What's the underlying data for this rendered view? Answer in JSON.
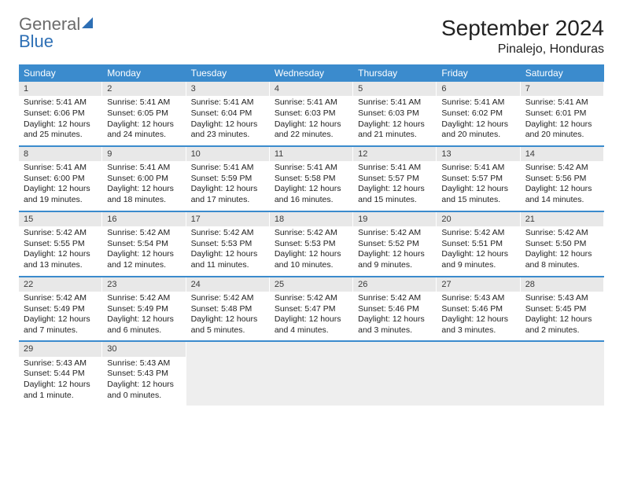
{
  "logo": {
    "gray": "General",
    "blue": "Blue"
  },
  "title": "September 2024",
  "location": "Pinalejo, Honduras",
  "colors": {
    "header_bg": "#3b8bcd",
    "header_text": "#ffffff",
    "daynum_bg": "#e8e8e8",
    "row_border": "#3b8bcd",
    "empty_bg": "#eeeeee"
  },
  "day_headers": [
    "Sunday",
    "Monday",
    "Tuesday",
    "Wednesday",
    "Thursday",
    "Friday",
    "Saturday"
  ],
  "weeks": [
    [
      {
        "n": "1",
        "sunrise": "Sunrise: 5:41 AM",
        "sunset": "Sunset: 6:06 PM",
        "d1": "Daylight: 12 hours",
        "d2": "and 25 minutes."
      },
      {
        "n": "2",
        "sunrise": "Sunrise: 5:41 AM",
        "sunset": "Sunset: 6:05 PM",
        "d1": "Daylight: 12 hours",
        "d2": "and 24 minutes."
      },
      {
        "n": "3",
        "sunrise": "Sunrise: 5:41 AM",
        "sunset": "Sunset: 6:04 PM",
        "d1": "Daylight: 12 hours",
        "d2": "and 23 minutes."
      },
      {
        "n": "4",
        "sunrise": "Sunrise: 5:41 AM",
        "sunset": "Sunset: 6:03 PM",
        "d1": "Daylight: 12 hours",
        "d2": "and 22 minutes."
      },
      {
        "n": "5",
        "sunrise": "Sunrise: 5:41 AM",
        "sunset": "Sunset: 6:03 PM",
        "d1": "Daylight: 12 hours",
        "d2": "and 21 minutes."
      },
      {
        "n": "6",
        "sunrise": "Sunrise: 5:41 AM",
        "sunset": "Sunset: 6:02 PM",
        "d1": "Daylight: 12 hours",
        "d2": "and 20 minutes."
      },
      {
        "n": "7",
        "sunrise": "Sunrise: 5:41 AM",
        "sunset": "Sunset: 6:01 PM",
        "d1": "Daylight: 12 hours",
        "d2": "and 20 minutes."
      }
    ],
    [
      {
        "n": "8",
        "sunrise": "Sunrise: 5:41 AM",
        "sunset": "Sunset: 6:00 PM",
        "d1": "Daylight: 12 hours",
        "d2": "and 19 minutes."
      },
      {
        "n": "9",
        "sunrise": "Sunrise: 5:41 AM",
        "sunset": "Sunset: 6:00 PM",
        "d1": "Daylight: 12 hours",
        "d2": "and 18 minutes."
      },
      {
        "n": "10",
        "sunrise": "Sunrise: 5:41 AM",
        "sunset": "Sunset: 5:59 PM",
        "d1": "Daylight: 12 hours",
        "d2": "and 17 minutes."
      },
      {
        "n": "11",
        "sunrise": "Sunrise: 5:41 AM",
        "sunset": "Sunset: 5:58 PM",
        "d1": "Daylight: 12 hours",
        "d2": "and 16 minutes."
      },
      {
        "n": "12",
        "sunrise": "Sunrise: 5:41 AM",
        "sunset": "Sunset: 5:57 PM",
        "d1": "Daylight: 12 hours",
        "d2": "and 15 minutes."
      },
      {
        "n": "13",
        "sunrise": "Sunrise: 5:41 AM",
        "sunset": "Sunset: 5:57 PM",
        "d1": "Daylight: 12 hours",
        "d2": "and 15 minutes."
      },
      {
        "n": "14",
        "sunrise": "Sunrise: 5:42 AM",
        "sunset": "Sunset: 5:56 PM",
        "d1": "Daylight: 12 hours",
        "d2": "and 14 minutes."
      }
    ],
    [
      {
        "n": "15",
        "sunrise": "Sunrise: 5:42 AM",
        "sunset": "Sunset: 5:55 PM",
        "d1": "Daylight: 12 hours",
        "d2": "and 13 minutes."
      },
      {
        "n": "16",
        "sunrise": "Sunrise: 5:42 AM",
        "sunset": "Sunset: 5:54 PM",
        "d1": "Daylight: 12 hours",
        "d2": "and 12 minutes."
      },
      {
        "n": "17",
        "sunrise": "Sunrise: 5:42 AM",
        "sunset": "Sunset: 5:53 PM",
        "d1": "Daylight: 12 hours",
        "d2": "and 11 minutes."
      },
      {
        "n": "18",
        "sunrise": "Sunrise: 5:42 AM",
        "sunset": "Sunset: 5:53 PM",
        "d1": "Daylight: 12 hours",
        "d2": "and 10 minutes."
      },
      {
        "n": "19",
        "sunrise": "Sunrise: 5:42 AM",
        "sunset": "Sunset: 5:52 PM",
        "d1": "Daylight: 12 hours",
        "d2": "and 9 minutes."
      },
      {
        "n": "20",
        "sunrise": "Sunrise: 5:42 AM",
        "sunset": "Sunset: 5:51 PM",
        "d1": "Daylight: 12 hours",
        "d2": "and 9 minutes."
      },
      {
        "n": "21",
        "sunrise": "Sunrise: 5:42 AM",
        "sunset": "Sunset: 5:50 PM",
        "d1": "Daylight: 12 hours",
        "d2": "and 8 minutes."
      }
    ],
    [
      {
        "n": "22",
        "sunrise": "Sunrise: 5:42 AM",
        "sunset": "Sunset: 5:49 PM",
        "d1": "Daylight: 12 hours",
        "d2": "and 7 minutes."
      },
      {
        "n": "23",
        "sunrise": "Sunrise: 5:42 AM",
        "sunset": "Sunset: 5:49 PM",
        "d1": "Daylight: 12 hours",
        "d2": "and 6 minutes."
      },
      {
        "n": "24",
        "sunrise": "Sunrise: 5:42 AM",
        "sunset": "Sunset: 5:48 PM",
        "d1": "Daylight: 12 hours",
        "d2": "and 5 minutes."
      },
      {
        "n": "25",
        "sunrise": "Sunrise: 5:42 AM",
        "sunset": "Sunset: 5:47 PM",
        "d1": "Daylight: 12 hours",
        "d2": "and 4 minutes."
      },
      {
        "n": "26",
        "sunrise": "Sunrise: 5:42 AM",
        "sunset": "Sunset: 5:46 PM",
        "d1": "Daylight: 12 hours",
        "d2": "and 3 minutes."
      },
      {
        "n": "27",
        "sunrise": "Sunrise: 5:43 AM",
        "sunset": "Sunset: 5:46 PM",
        "d1": "Daylight: 12 hours",
        "d2": "and 3 minutes."
      },
      {
        "n": "28",
        "sunrise": "Sunrise: 5:43 AM",
        "sunset": "Sunset: 5:45 PM",
        "d1": "Daylight: 12 hours",
        "d2": "and 2 minutes."
      }
    ],
    [
      {
        "n": "29",
        "sunrise": "Sunrise: 5:43 AM",
        "sunset": "Sunset: 5:44 PM",
        "d1": "Daylight: 12 hours",
        "d2": "and 1 minute."
      },
      {
        "n": "30",
        "sunrise": "Sunrise: 5:43 AM",
        "sunset": "Sunset: 5:43 PM",
        "d1": "Daylight: 12 hours",
        "d2": "and 0 minutes."
      },
      null,
      null,
      null,
      null,
      null
    ]
  ]
}
